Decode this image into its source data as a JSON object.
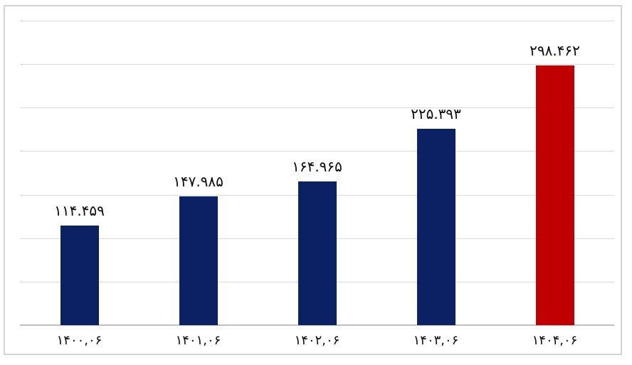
{
  "chart_data": {
    "type": "bar",
    "title": "",
    "xlabel": "",
    "ylabel": "",
    "categories": [
      "۱۴۰۰,۰۶",
      "۱۴۰۱,۰۶",
      "۱۴۰۲,۰۶",
      "۱۴۰۳,۰۶",
      "۱۴۰۴,۰۶"
    ],
    "categories_western": [
      "1400,06",
      "1401,06",
      "1402,06",
      "1403,06",
      "1404,06"
    ],
    "values": [
      114459,
      147985,
      164965,
      225393,
      298462
    ],
    "value_labels": [
      "۱۱۴.۴۵۹",
      "۱۴۷.۹۸۵",
      "۱۶۴.۹۶۵",
      "۲۲۵.۳۹۳",
      "۲۹۸.۴۶۲"
    ],
    "bar_colors": [
      "#0a2264",
      "#0a2264",
      "#0a2264",
      "#0a2264",
      "#c00000"
    ],
    "ylim": [
      0,
      350000
    ],
    "gridline_step": 50000,
    "grid": true,
    "legend": false,
    "y_tick_labels_visible": false,
    "colors": {
      "bar_default": "#0a2264",
      "bar_highlight": "#c00000",
      "gridline": "#d9d9d9",
      "axis_line": "#bfbfbf",
      "frame_border": "#d3d3d3",
      "background": "#ffffff",
      "label_text": "#0d0d0d"
    }
  }
}
